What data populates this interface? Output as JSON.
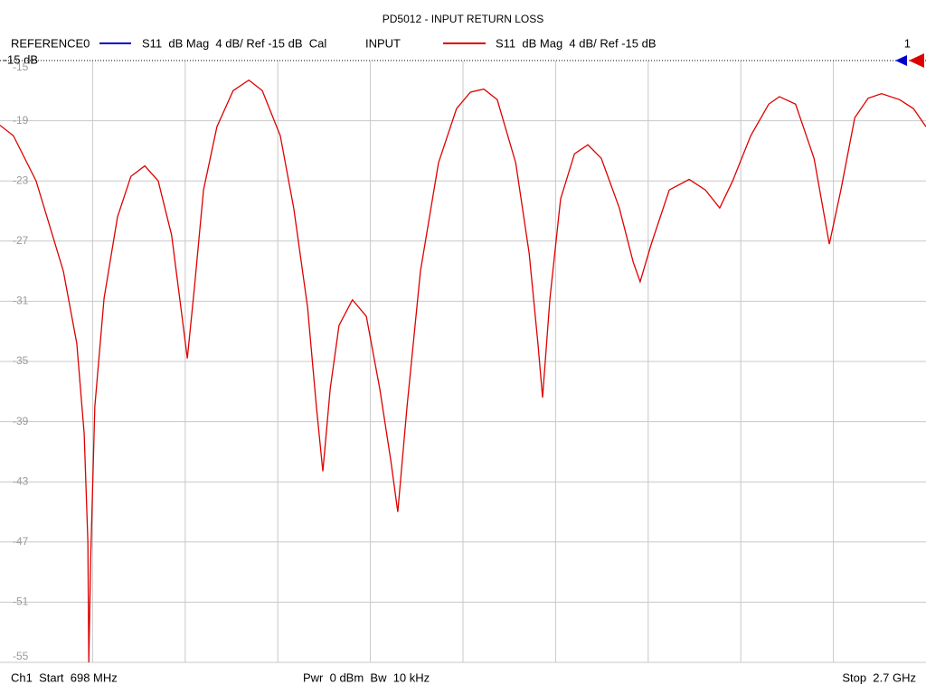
{
  "chart_data": {
    "type": "line",
    "title": "PD5012 - INPUT RETURN LOSS",
    "reference_trace": {
      "name": "REFERENCE0",
      "color": "#0000cc",
      "description": "S11  dB Mag  4 dB/ Ref -15 dB  Cal"
    },
    "reference_label": "-15 dB",
    "marker_label": "1",
    "footer": [
      "Ch1  Start  698 MHz",
      "Pwr  0 dBm  Bw  10 kHz",
      "Stop  2.7 GHz"
    ],
    "x": [
      698,
      727,
      776,
      835,
      864,
      880,
      888,
      890,
      894,
      903,
      923,
      952,
      981,
      1011,
      1040,
      1069,
      1089,
      1103,
      1118,
      1138,
      1167,
      1202,
      1236,
      1265,
      1304,
      1333,
      1363,
      1382,
      1396,
      1412,
      1431,
      1460,
      1490,
      1519,
      1543,
      1558,
      1578,
      1607,
      1646,
      1685,
      1715,
      1744,
      1773,
      1813,
      1842,
      1861,
      1871,
      1887,
      1910,
      1940,
      1969,
      1998,
      2037,
      2067,
      2082,
      2106,
      2145,
      2188,
      2223,
      2254,
      2282,
      2321,
      2360,
      2383,
      2418,
      2458,
      2491,
      2516,
      2546,
      2575,
      2604,
      2643,
      2673,
      2700
    ],
    "series": [
      {
        "name": "INPUT",
        "color": "#dd0000",
        "description": "S11  dB Mag  4 dB/ Ref -15 dB",
        "values": [
          -19.3,
          -20,
          -23,
          -29,
          -33.8,
          -39.8,
          -47,
          -55,
          -48.2,
          -38,
          -30.8,
          -25.4,
          -22.7,
          -22,
          -23,
          -26.6,
          -31.4,
          -34.8,
          -30.2,
          -23.6,
          -19.4,
          -17,
          -16.3,
          -17,
          -20,
          -24.8,
          -31.4,
          -38,
          -42.3,
          -36.8,
          -32.6,
          -30.9,
          -32,
          -36.8,
          -41.6,
          -45,
          -38,
          -29,
          -21.8,
          -18.2,
          -17.1,
          -16.9,
          -17.6,
          -21.8,
          -27.8,
          -33.8,
          -37.4,
          -30.8,
          -24.2,
          -21.2,
          -20.6,
          -21.5,
          -24.8,
          -28.4,
          -29.7,
          -27.2,
          -23.6,
          -22.9,
          -23.6,
          -24.8,
          -23,
          -20,
          -17.9,
          -17.4,
          -17.9,
          -21.5,
          -27.2,
          -23.6,
          -18.8,
          -17.5,
          -17.2,
          -17.6,
          -18.2,
          -19.4
        ]
      }
    ],
    "xlim": [
      698,
      2700
    ],
    "ylim": [
      -55,
      -15
    ],
    "yticks": [
      -15,
      -19,
      -23,
      -27,
      -31,
      -35,
      -39,
      -43,
      -47,
      -51,
      -55
    ],
    "grid": true
  }
}
